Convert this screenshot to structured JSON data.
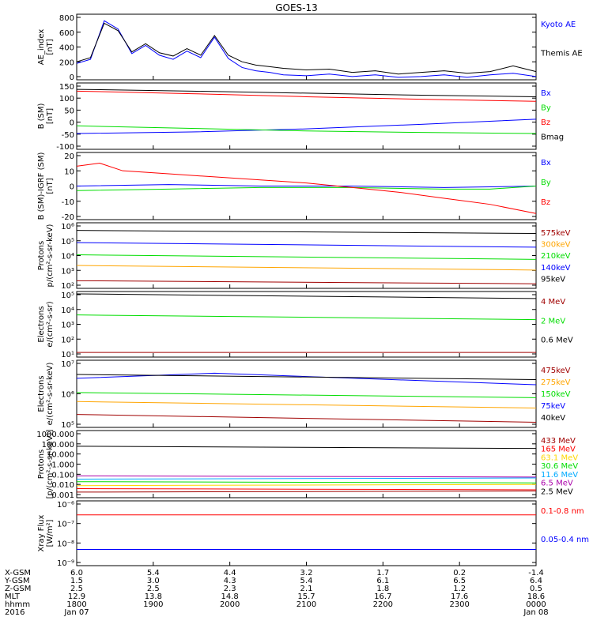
{
  "title": "GOES-13",
  "colors": {
    "black": "#000000",
    "blue": "#0000ff",
    "red": "#ff0000",
    "green": "#00dd00",
    "orange": "#ffa500",
    "darkred": "#a00000",
    "cyan": "#00aaff",
    "yellow": "#ffd700",
    "purple": "#aa00aa"
  },
  "chart_data": [
    {
      "id": "ae",
      "type": "line",
      "ylabel": [
        "AE_index",
        "[nT]"
      ],
      "y_ticks": [
        "800",
        "600",
        "400",
        "200",
        "0"
      ],
      "ylim": [
        0,
        800
      ],
      "scale": "linear",
      "series": [
        {
          "name": "Kyoto AE",
          "color": "#0000ff",
          "x": [
            0,
            0.03,
            0.06,
            0.09,
            0.12,
            0.15,
            0.18,
            0.21,
            0.24,
            0.27,
            0.3,
            0.33,
            0.36,
            0.39,
            0.42,
            0.45,
            0.5,
            0.55,
            0.6,
            0.65,
            0.7,
            0.75,
            0.8,
            0.85,
            0.9,
            0.95,
            1.0
          ],
          "y": [
            200,
            250,
            720,
            620,
            320,
            420,
            300,
            250,
            350,
            270,
            520,
            260,
            150,
            110,
            90,
            60,
            50,
            70,
            40,
            60,
            30,
            40,
            60,
            30,
            60,
            80,
            40
          ]
        },
        {
          "name": "Themis AE",
          "color": "#000000",
          "x": [
            0,
            0.03,
            0.06,
            0.09,
            0.12,
            0.15,
            0.18,
            0.21,
            0.24,
            0.27,
            0.3,
            0.33,
            0.36,
            0.39,
            0.42,
            0.45,
            0.5,
            0.55,
            0.6,
            0.65,
            0.7,
            0.75,
            0.8,
            0.85,
            0.9,
            0.95,
            1.0
          ],
          "y": [
            220,
            270,
            690,
            600,
            340,
            440,
            330,
            290,
            380,
            300,
            540,
            300,
            220,
            180,
            160,
            140,
            120,
            130,
            90,
            110,
            70,
            90,
            110,
            80,
            100,
            170,
            100
          ]
        }
      ]
    },
    {
      "id": "bsm",
      "type": "line",
      "ylabel": [
        "B (SM)",
        "[nT]"
      ],
      "y_ticks": [
        "150",
        "100",
        "50",
        "0",
        "-50",
        "-100"
      ],
      "ylim": [
        -110,
        150
      ],
      "scale": "linear",
      "series": [
        {
          "name": "Bx",
          "color": "#0000ff",
          "x": [
            0,
            0.25,
            0.5,
            0.75,
            1.0
          ],
          "y": [
            -48,
            -42,
            -30,
            -12,
            8
          ]
        },
        {
          "name": "By",
          "color": "#00dd00",
          "x": [
            0,
            0.25,
            0.5,
            0.75,
            1.0
          ],
          "y": [
            -18,
            -28,
            -38,
            -44,
            -48
          ]
        },
        {
          "name": "Bz",
          "color": "#ff0000",
          "x": [
            0,
            0.25,
            0.5,
            0.75,
            1.0
          ],
          "y": [
            118,
            108,
            96,
            86,
            78
          ]
        },
        {
          "name": "Bmag",
          "color": "#000000",
          "x": [
            0,
            0.25,
            0.5,
            0.75,
            1.0
          ],
          "y": [
            125,
            118,
            110,
            102,
            96
          ]
        }
      ]
    },
    {
      "id": "bdiff",
      "type": "line",
      "ylabel": [
        "B (SM)-IGRF (SM)",
        "[nT]"
      ],
      "y_ticks": [
        "20",
        "10",
        "0",
        "-10",
        "-20"
      ],
      "ylim": [
        -22,
        22
      ],
      "scale": "linear",
      "series": [
        {
          "name": "Bx",
          "color": "#0000ff",
          "x": [
            0,
            0.2,
            0.4,
            0.6,
            0.8,
            1.0
          ],
          "y": [
            0,
            1,
            0,
            0,
            -1,
            0
          ]
        },
        {
          "name": "By",
          "color": "#00dd00",
          "x": [
            0,
            0.2,
            0.4,
            0.6,
            0.8,
            0.9,
            1.0
          ],
          "y": [
            -3,
            -2,
            -1,
            -1,
            -2,
            -2,
            0
          ]
        },
        {
          "name": "Bz",
          "color": "#ff0000",
          "x": [
            0,
            0.05,
            0.1,
            0.2,
            0.3,
            0.4,
            0.5,
            0.6,
            0.7,
            0.8,
            0.9,
            1.0
          ],
          "y": [
            13,
            15,
            10,
            8,
            6,
            4,
            2,
            -1,
            -4,
            -8,
            -12,
            -18
          ]
        }
      ]
    },
    {
      "id": "protons1",
      "type": "line",
      "ylabel": [
        "Protons",
        "p/(cm²-s-sr-keV)"
      ],
      "y_ticks": [
        "10⁶",
        "10⁵",
        "10⁴",
        "10³",
        "10²"
      ],
      "ylim": [
        1.8,
        6.1
      ],
      "scale": "log",
      "series": [
        {
          "name": "575keV",
          "color": "#a00000",
          "x": [
            0,
            1
          ],
          "y": [
            2.3,
            2.1
          ]
        },
        {
          "name": "300keV",
          "color": "#ffa500",
          "x": [
            0,
            1
          ],
          "y": [
            3.3,
            3.0
          ]
        },
        {
          "name": "210keV",
          "color": "#00dd00",
          "x": [
            0,
            1
          ],
          "y": [
            4.0,
            3.7
          ]
        },
        {
          "name": "140keV",
          "color": "#0000ff",
          "x": [
            0,
            1
          ],
          "y": [
            4.8,
            4.5
          ]
        },
        {
          "name": "95keV",
          "color": "#000000",
          "x": [
            0,
            1
          ],
          "y": [
            5.6,
            5.4
          ]
        }
      ]
    },
    {
      "id": "electrons1",
      "type": "line",
      "ylabel": [
        "Electrons",
        "e/(cm²-s-sr)"
      ],
      "y_ticks": [
        "10⁵",
        "10⁴",
        "10³",
        "10²",
        "10¹"
      ],
      "ylim": [
        0.8,
        5.0
      ],
      "scale": "log",
      "series": [
        {
          "name": "4 MeV",
          "color": "#a00000",
          "x": [
            0,
            1
          ],
          "y": [
            1.1,
            1.1
          ]
        },
        {
          "name": "2 MeV",
          "color": "#00dd00",
          "x": [
            0,
            1
          ],
          "y": [
            3.5,
            3.2
          ]
        },
        {
          "name": "0.6 MeV",
          "color": "#000000",
          "x": [
            0,
            1
          ],
          "y": [
            4.85,
            4.55
          ]
        }
      ]
    },
    {
      "id": "electrons2",
      "type": "line",
      "ylabel": [
        "Electrons",
        "e/(cm²-s-sr-keV)"
      ],
      "y_ticks": [
        "10⁷",
        "10⁶",
        "10⁵"
      ],
      "ylim": [
        4.4,
        7.0
      ],
      "scale": "log",
      "series": [
        {
          "name": "475keV",
          "color": "#a00000",
          "x": [
            0,
            1
          ],
          "y": [
            4.9,
            4.6
          ]
        },
        {
          "name": "275keV",
          "color": "#ffa500",
          "x": [
            0,
            1
          ],
          "y": [
            5.4,
            5.15
          ]
        },
        {
          "name": "150keV",
          "color": "#00dd00",
          "x": [
            0,
            1
          ],
          "y": [
            5.75,
            5.55
          ]
        },
        {
          "name": "75keV",
          "color": "#0000ff",
          "x": [
            0,
            0.3,
            1
          ],
          "y": [
            6.3,
            6.5,
            6.05
          ]
        },
        {
          "name": "40keV",
          "color": "#000000",
          "x": [
            0,
            1
          ],
          "y": [
            6.45,
            6.25
          ]
        }
      ]
    },
    {
      "id": "protons2",
      "type": "line",
      "ylabel": [
        "Protons",
        "[p/(cm²-s-sr-keV)]"
      ],
      "y_ticks": [
        "1000.000",
        "100.000",
        "10.000",
        "1.000",
        "0.100",
        "0.010",
        "0.001"
      ],
      "ylim": [
        -3,
        3
      ],
      "scale": "log",
      "series": [
        {
          "name": "433 MeV",
          "color": "#a00000",
          "x": [
            0,
            1
          ],
          "y": [
            -2.5,
            -2.5
          ]
        },
        {
          "name": "165 MeV",
          "color": "#ff0000",
          "x": [
            0,
            1
          ],
          "y": [
            -2.2,
            -2.2
          ]
        },
        {
          "name": "63.1 MeV",
          "color": "#ffd700",
          "x": [
            0,
            1
          ],
          "y": [
            -1.9,
            -1.9
          ]
        },
        {
          "name": "30.6 MeV",
          "color": "#00dd00",
          "x": [
            0,
            1
          ],
          "y": [
            -1.6,
            -1.6
          ]
        },
        {
          "name": "11.6 MeV",
          "color": "#00aaff",
          "x": [
            0,
            1
          ],
          "y": [
            -1.3,
            -1.3
          ]
        },
        {
          "name": "6.5 MeV",
          "color": "#aa00aa",
          "x": [
            0,
            1
          ],
          "y": [
            -1.1,
            -1.1
          ]
        },
        {
          "name": "2.5 MeV",
          "color": "#000000",
          "x": [
            0,
            1
          ],
          "y": [
            1.6,
            1.4
          ]
        }
      ]
    },
    {
      "id": "xray",
      "type": "line",
      "ylabel": [
        "Xray Flux",
        "[W/m²]"
      ],
      "y_ticks": [
        "10⁻⁶",
        "10⁻⁷",
        "10⁻⁸",
        "10⁻⁹"
      ],
      "ylim": [
        -9,
        -6
      ],
      "scale": "log",
      "series": [
        {
          "name": "0.1-0.8 nm",
          "color": "#ff0000",
          "x": [
            0,
            1
          ],
          "y": [
            -6.65,
            -6.65
          ]
        },
        {
          "name": "0.05-0.4 nm",
          "color": "#0000ff",
          "x": [
            0,
            1
          ],
          "y": [
            -8.25,
            -8.25
          ]
        }
      ]
    }
  ],
  "x_axis": {
    "row_labels": [
      "X-GSM",
      "Y-GSM",
      "Z-GSM",
      "MLT",
      "hhmm",
      "2016"
    ],
    "columns": [
      [
        "6.0",
        "1.5",
        "2.5",
        "12.9",
        "1800",
        "Jan 07"
      ],
      [
        "5.4",
        "3.0",
        "2.5",
        "13.8",
        "1900",
        ""
      ],
      [
        "4.4",
        "4.3",
        "2.3",
        "14.8",
        "2000",
        ""
      ],
      [
        "3.2",
        "5.4",
        "2.1",
        "15.7",
        "2100",
        ""
      ],
      [
        "1.7",
        "6.1",
        "1.8",
        "16.7",
        "2200",
        ""
      ],
      [
        "0.2",
        "6.5",
        "1.2",
        "17.6",
        "2300",
        ""
      ],
      [
        "-1.4",
        "6.4",
        "0.5",
        "18.6",
        "0000",
        "Jan 08"
      ]
    ]
  }
}
